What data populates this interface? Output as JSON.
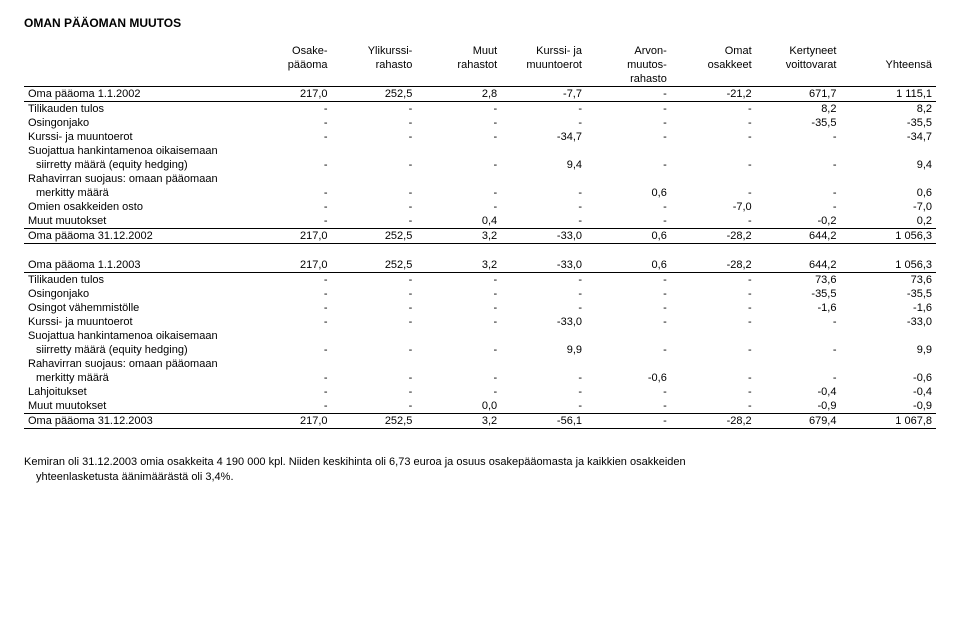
{
  "title": "OMAN PÄÄOMAN MUUTOS",
  "columns": {
    "label": "",
    "c1": {
      "l1": "Osake-",
      "l2": "pääoma",
      "l3": ""
    },
    "c2": {
      "l1": "Ylikurssi-",
      "l2": "rahasto",
      "l3": ""
    },
    "c3": {
      "l1": "Muut",
      "l2": "rahastot",
      "l3": ""
    },
    "c4": {
      "l1": "Kurssi- ja",
      "l2": "muuntoerot",
      "l3": ""
    },
    "c5": {
      "l1": "Arvon-",
      "l2": "muutos-",
      "l3": "rahasto"
    },
    "c6": {
      "l1": "Omat",
      "l2": "osakkeet",
      "l3": ""
    },
    "c7": {
      "l1": "Kertyneet",
      "l2": "voittovarat",
      "l3": ""
    },
    "c8": {
      "l1": "",
      "l2": "Yhteensä",
      "l3": ""
    }
  },
  "block1": [
    {
      "label": "Oma pääoma 1.1.2002",
      "v": [
        "217,0",
        "252,5",
        "2,8",
        "-7,7",
        "-",
        "-21,2",
        "671,7",
        "1 115,1"
      ],
      "cls": "sum-bottom"
    },
    {
      "label": "Tilikauden tulos",
      "v": [
        "-",
        "-",
        "-",
        "-",
        "-",
        "-",
        "8,2",
        "8,2"
      ]
    },
    {
      "label": "Osingonjako",
      "v": [
        "-",
        "-",
        "-",
        "-",
        "-",
        "-",
        "-35,5",
        "-35,5"
      ]
    },
    {
      "label": "Kurssi- ja muuntoerot",
      "v": [
        "-",
        "-",
        "-",
        "-34,7",
        "-",
        "-",
        "-",
        "-34,7"
      ]
    },
    {
      "label": "Suojattua hankintamenoa oikaisemaan",
      "v": [
        "",
        "",
        "",
        "",
        "",
        "",
        "",
        ""
      ]
    },
    {
      "label": "siirretty määrä (equity hedging)",
      "v": [
        "-",
        "-",
        "-",
        "9,4",
        "-",
        "-",
        "-",
        "9,4"
      ],
      "indent": true
    },
    {
      "label": "Rahavirran suojaus: omaan pääomaan",
      "v": [
        "",
        "",
        "",
        "",
        "",
        "",
        "",
        ""
      ]
    },
    {
      "label": "merkitty määrä",
      "v": [
        "-",
        "-",
        "-",
        "-",
        "0,6",
        "-",
        "-",
        "0,6"
      ],
      "indent": true
    },
    {
      "label": "Omien osakkeiden osto",
      "v": [
        "-",
        "-",
        "-",
        "-",
        "-",
        "-7,0",
        "-",
        "-7,0"
      ]
    },
    {
      "label": "Muut muutokset",
      "v": [
        "-",
        "-",
        "0,4",
        "-",
        "-",
        "-",
        "-0,2",
        "0,2"
      ]
    },
    {
      "label": "Oma pääoma 31.12.2002",
      "v": [
        "217,0",
        "252,5",
        "3,2",
        "-33,0",
        "0,6",
        "-28,2",
        "644,2",
        "1 056,3"
      ],
      "cls": "sum sum-bottom"
    }
  ],
  "block2": [
    {
      "label": "Oma pääoma 1.1.2003",
      "v": [
        "217,0",
        "252,5",
        "3,2",
        "-33,0",
        "0,6",
        "-28,2",
        "644,2",
        "1 056,3"
      ],
      "cls": "sum-bottom"
    },
    {
      "label": "Tilikauden tulos",
      "v": [
        "-",
        "-",
        "-",
        "-",
        "-",
        "-",
        "73,6",
        "73,6"
      ]
    },
    {
      "label": "Osingonjako",
      "v": [
        "-",
        "-",
        "-",
        "-",
        "-",
        "-",
        "-35,5",
        "-35,5"
      ]
    },
    {
      "label": "Osingot vähemmistölle",
      "v": [
        "-",
        "-",
        "-",
        "-",
        "-",
        "-",
        "-1,6",
        "-1,6"
      ]
    },
    {
      "label": "Kurssi- ja muuntoerot",
      "v": [
        "-",
        "-",
        "-",
        "-33,0",
        "-",
        "-",
        "-",
        "-33,0"
      ]
    },
    {
      "label": "Suojattua hankintamenoa oikaisemaan",
      "v": [
        "",
        "",
        "",
        "",
        "",
        "",
        "",
        ""
      ]
    },
    {
      "label": "siirretty määrä (equity hedging)",
      "v": [
        "-",
        "-",
        "-",
        "9,9",
        "-",
        "-",
        "-",
        "9,9"
      ],
      "indent": true
    },
    {
      "label": "Rahavirran suojaus: omaan pääomaan",
      "v": [
        "",
        "",
        "",
        "",
        "",
        "",
        "",
        ""
      ]
    },
    {
      "label": "merkitty määrä",
      "v": [
        "-",
        "-",
        "-",
        "-",
        "-0,6",
        "-",
        "-",
        "-0,6"
      ],
      "indent": true
    },
    {
      "label": "Lahjoitukset",
      "v": [
        "-",
        "-",
        "-",
        "-",
        "-",
        "-",
        "-0,4",
        "-0,4"
      ]
    },
    {
      "label": "Muut muutokset",
      "v": [
        "-",
        "-",
        "0,0",
        "-",
        "-",
        "-",
        "-0,9",
        "-0,9"
      ]
    },
    {
      "label": "Oma pääoma 31.12.2003",
      "v": [
        "217,0",
        "252,5",
        "3,2",
        "-56,1",
        "-",
        "-28,2",
        "679,4",
        "1 067,8"
      ],
      "cls": "sum sum-bottom"
    }
  ],
  "footnote": {
    "l1": "Kemiran oli 31.12.2003 omia osakkeita 4 190 000 kpl. Niiden keskihinta oli 6,73 euroa ja osuus osakepääomasta ja kaikkien osakkeiden",
    "l2": "yhteenlasketusta äänimäärästä oli 3,4%."
  }
}
